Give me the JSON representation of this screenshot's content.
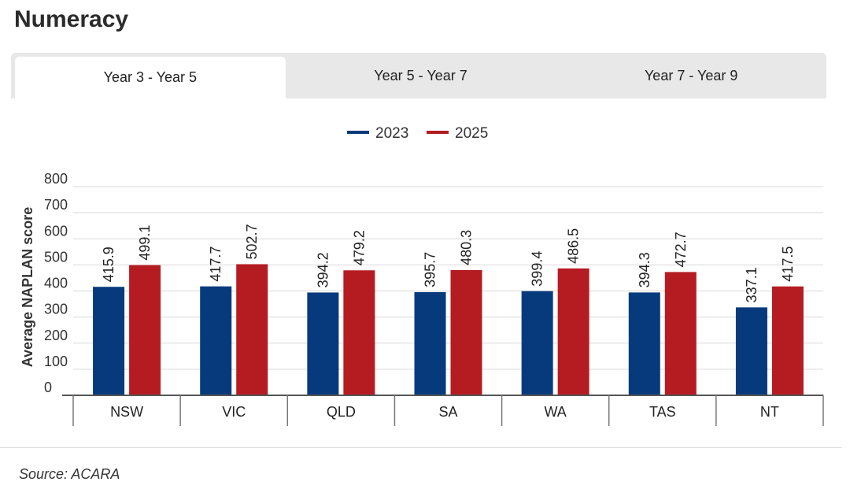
{
  "page": {
    "title": "Numeracy",
    "source": "Source: ACARA"
  },
  "tabs": [
    {
      "label": "Year 3 - Year 5",
      "active": true
    },
    {
      "label": "Year 5 - Year 7",
      "active": false
    },
    {
      "label": "Year 7 - Year 9",
      "active": false
    }
  ],
  "chart_data": {
    "type": "bar",
    "categories": [
      "NSW",
      "VIC",
      "QLD",
      "SA",
      "WA",
      "TAS",
      "NT"
    ],
    "series": [
      {
        "name": "2023",
        "color": "#063a7c",
        "values": [
          415.9,
          417.7,
          394.2,
          395.7,
          399.4,
          394.3,
          337.1
        ]
      },
      {
        "name": "2025",
        "color": "#b51c22",
        "values": [
          499.1,
          502.7,
          479.2,
          480.3,
          486.5,
          472.7,
          417.5
        ]
      }
    ],
    "ylabel": "Average NAPLAN score",
    "ylim": [
      0,
      800
    ],
    "yticks": [
      0,
      100,
      200,
      300,
      400,
      500,
      600,
      700,
      800
    ],
    "grid": true,
    "legend": "top-center"
  }
}
